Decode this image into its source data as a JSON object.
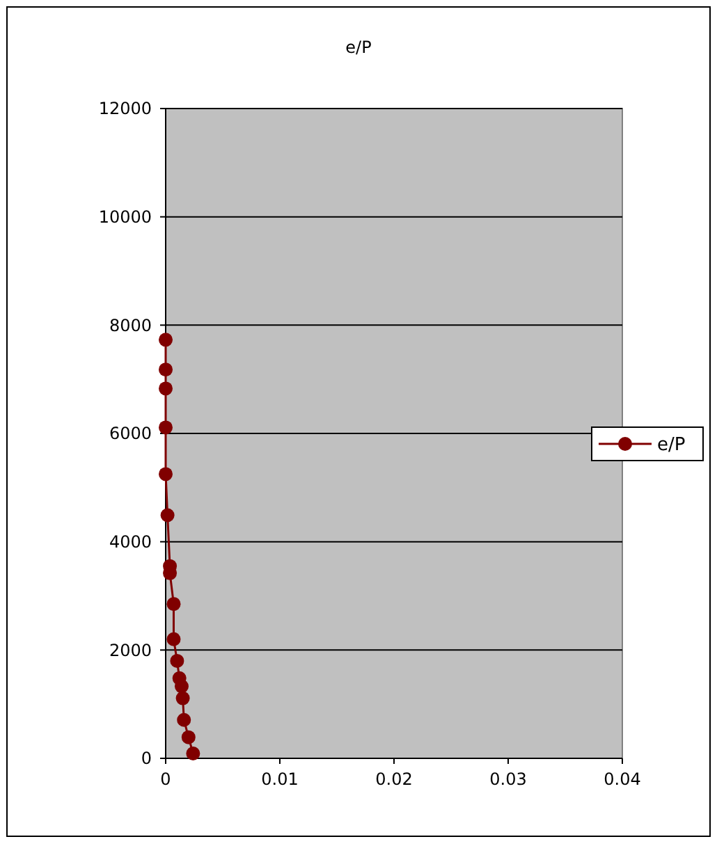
{
  "chart_data": {
    "type": "line",
    "title": "e/P",
    "xlim": [
      0,
      0.04
    ],
    "xticks": [
      0,
      0.01,
      0.02,
      0.03,
      0.04
    ],
    "ylim": [
      0,
      12000
    ],
    "yticks": [
      0,
      2000,
      4000,
      6000,
      8000,
      10000,
      12000
    ],
    "grid": "y",
    "legend": "right",
    "marker": "circle",
    "line_style": "solid",
    "series": [
      {
        "name": "e/P",
        "color": "#800000",
        "x": [
          0,
          0,
          0,
          0,
          0,
          0.00016,
          0.00037,
          0.00037,
          0.0007,
          0.0007,
          0.001,
          0.0012,
          0.0014,
          0.0015,
          0.0016,
          0.002,
          0.0024
        ],
        "values": [
          7730,
          7180,
          6830,
          6110,
          5250,
          4490,
          3550,
          3420,
          2850,
          2200,
          1800,
          1480,
          1330,
          1110,
          710,
          390,
          90
        ]
      }
    ]
  }
}
